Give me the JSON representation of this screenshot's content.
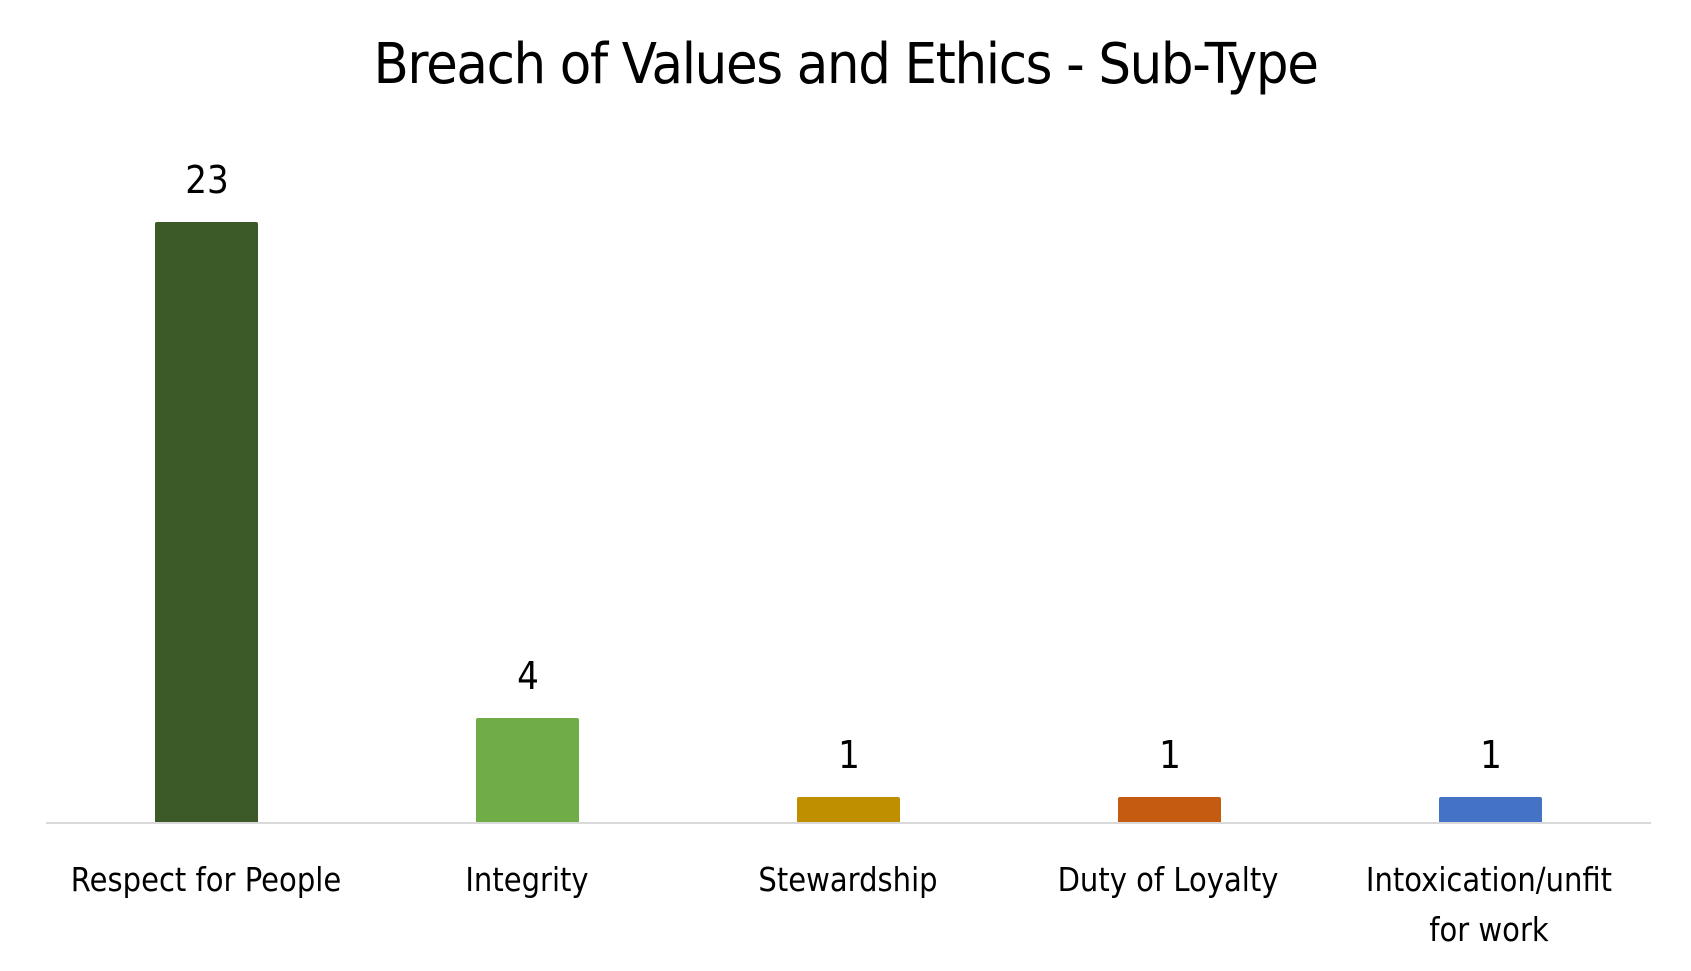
{
  "chart_data": {
    "type": "bar",
    "title": "Breach of Values and Ethics - Sub-Type",
    "xlabel": "",
    "ylabel": "",
    "categories": [
      "Respect for People",
      "Integrity",
      "Stewardship",
      "Duty of Loyalty",
      "Intoxication/unfit for work"
    ],
    "values": [
      23,
      4,
      1,
      1,
      1
    ],
    "colors": [
      "#3b5a27",
      "#70ad47",
      "#bf8f00",
      "#c55a11",
      "#4472c4"
    ],
    "data_labels": [
      "23",
      "4",
      "1",
      "1",
      "1"
    ],
    "ylim": [
      0,
      25
    ],
    "grid": false,
    "legend": "none"
  },
  "labels": {
    "cat0": "Respect for People",
    "cat1": "Integrity",
    "cat2": "Stewardship",
    "cat3": "Duty of Loyalty",
    "cat4_line1": "Intoxication/unfit",
    "cat4_line2": "for work"
  }
}
